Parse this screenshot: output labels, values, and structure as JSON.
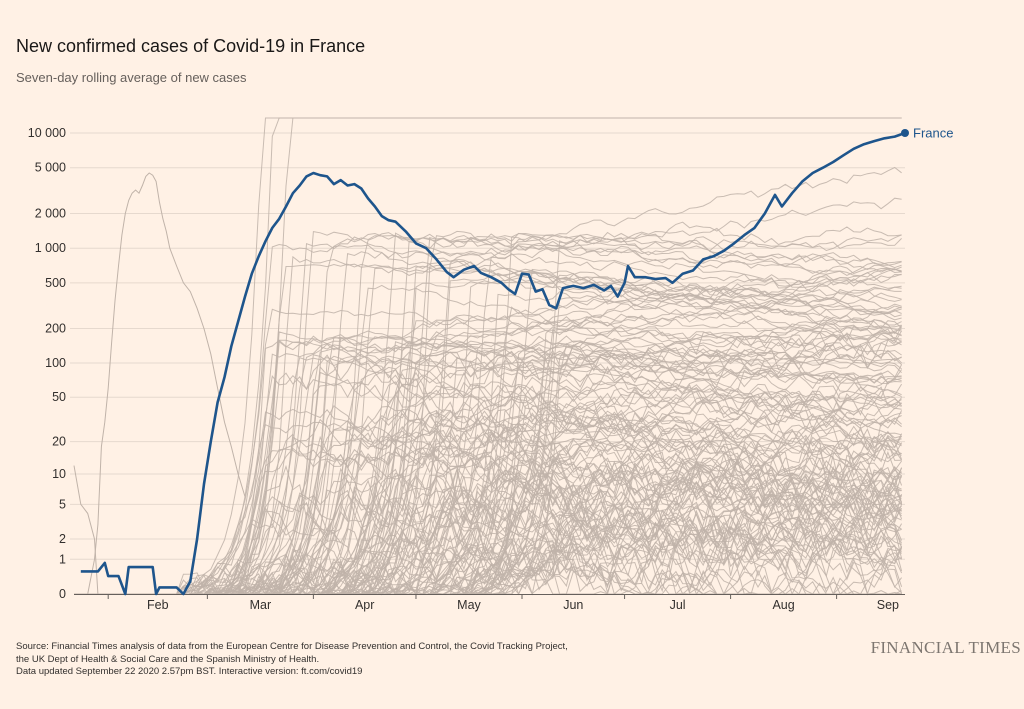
{
  "title": "New confirmed cases of Covid-19 in France",
  "subtitle": "Seven-day rolling average of new cases",
  "footer": {
    "line1": "Source: Financial Times analysis of data from the European Centre for Disease Prevention and Control, the Covid Tracking Project,",
    "line2": "the UK Dept of Health & Social Care and the Spanish Ministry of Health.",
    "line3": "Data updated September 22 2020 2.57pm BST. Interactive version: ft.com/covid19"
  },
  "logo": "FINANCIAL TIMES",
  "colors": {
    "background": "#fff1e5",
    "highlight": "#1e558c",
    "other_countries": "#c0b3a9"
  },
  "chart_data": {
    "type": "line",
    "scale": "log-ish (symlog, 0 shown at bottom)",
    "title": "New confirmed cases of Covid-19 in France",
    "xlabel": "",
    "ylabel": "Seven-day rolling average of new cases",
    "x_ticks": [
      "Feb",
      "Mar",
      "Apr",
      "May",
      "Jun",
      "Jul",
      "Aug",
      "Sep"
    ],
    "y_ticks": [
      {
        "value": 0,
        "label": "0"
      },
      {
        "value": 1,
        "label": "1"
      },
      {
        "value": 2,
        "label": "2"
      },
      {
        "value": 5,
        "label": "5"
      },
      {
        "value": 10,
        "label": "10"
      },
      {
        "value": 20,
        "label": "20"
      },
      {
        "value": 50,
        "label": "50"
      },
      {
        "value": 100,
        "label": "100"
      },
      {
        "value": 200,
        "label": "200"
      },
      {
        "value": 500,
        "label": "500"
      },
      {
        "value": 1000,
        "label": "1 000"
      },
      {
        "value": 2000,
        "label": "2 000"
      },
      {
        "value": 5000,
        "label": "5 000"
      },
      {
        "value": 10000,
        "label": "10 000"
      }
    ],
    "x_range": [
      "2020-01-22",
      "2020-09-21"
    ],
    "y_range": [
      0,
      10000
    ],
    "highlight": {
      "name": "France",
      "label": "France",
      "points": [
        [
          "2020-01-24",
          0.57
        ],
        [
          "2020-01-29",
          0.57
        ],
        [
          "2020-01-31",
          0.86
        ],
        [
          "2020-02-01",
          0.43
        ],
        [
          "2020-02-04",
          0.43
        ],
        [
          "2020-02-06",
          0
        ],
        [
          "2020-02-07",
          0.71
        ],
        [
          "2020-02-14",
          0.71
        ],
        [
          "2020-02-15",
          0
        ],
        [
          "2020-02-16",
          0.14
        ],
        [
          "2020-02-21",
          0.14
        ],
        [
          "2020-02-23",
          0
        ],
        [
          "2020-02-25",
          0.29
        ],
        [
          "2020-02-27",
          2
        ],
        [
          "2020-02-29",
          8
        ],
        [
          "2020-03-02",
          20
        ],
        [
          "2020-03-04",
          45
        ],
        [
          "2020-03-06",
          75
        ],
        [
          "2020-03-08",
          140
        ],
        [
          "2020-03-10",
          230
        ],
        [
          "2020-03-12",
          380
        ],
        [
          "2020-03-14",
          600
        ],
        [
          "2020-03-16",
          850
        ],
        [
          "2020-03-18",
          1150
        ],
        [
          "2020-03-20",
          1500
        ],
        [
          "2020-03-22",
          1800
        ],
        [
          "2020-03-24",
          2300
        ],
        [
          "2020-03-26",
          3000
        ],
        [
          "2020-03-28",
          3500
        ],
        [
          "2020-03-30",
          4200
        ],
        [
          "2020-04-01",
          4500
        ],
        [
          "2020-04-03",
          4300
        ],
        [
          "2020-04-05",
          4200
        ],
        [
          "2020-04-07",
          3600
        ],
        [
          "2020-04-09",
          3900
        ],
        [
          "2020-04-11",
          3500
        ],
        [
          "2020-04-13",
          3600
        ],
        [
          "2020-04-15",
          3300
        ],
        [
          "2020-04-17",
          2700
        ],
        [
          "2020-04-19",
          2300
        ],
        [
          "2020-04-21",
          1900
        ],
        [
          "2020-04-23",
          1750
        ],
        [
          "2020-04-25",
          1700
        ],
        [
          "2020-04-28",
          1400
        ],
        [
          "2020-05-01",
          1100
        ],
        [
          "2020-05-04",
          1000
        ],
        [
          "2020-05-07",
          800
        ],
        [
          "2020-05-10",
          620
        ],
        [
          "2020-05-12",
          560
        ],
        [
          "2020-05-15",
          650
        ],
        [
          "2020-05-18",
          700
        ],
        [
          "2020-05-20",
          610
        ],
        [
          "2020-05-23",
          560
        ],
        [
          "2020-05-26",
          500
        ],
        [
          "2020-05-28",
          440
        ],
        [
          "2020-05-30",
          400
        ],
        [
          "2020-06-01",
          600
        ],
        [
          "2020-06-03",
          590
        ],
        [
          "2020-06-05",
          420
        ],
        [
          "2020-06-07",
          440
        ],
        [
          "2020-06-09",
          320
        ],
        [
          "2020-06-11",
          300
        ],
        [
          "2020-06-13",
          450
        ],
        [
          "2020-06-16",
          470
        ],
        [
          "2020-06-19",
          450
        ],
        [
          "2020-06-22",
          480
        ],
        [
          "2020-06-25",
          430
        ],
        [
          "2020-06-27",
          470
        ],
        [
          "2020-06-29",
          380
        ],
        [
          "2020-07-01",
          500
        ],
        [
          "2020-07-02",
          700
        ],
        [
          "2020-07-04",
          560
        ],
        [
          "2020-07-07",
          560
        ],
        [
          "2020-07-10",
          540
        ],
        [
          "2020-07-13",
          550
        ],
        [
          "2020-07-15",
          500
        ],
        [
          "2020-07-18",
          600
        ],
        [
          "2020-07-21",
          640
        ],
        [
          "2020-07-24",
          800
        ],
        [
          "2020-07-27",
          850
        ],
        [
          "2020-07-30",
          950
        ],
        [
          "2020-08-02",
          1100
        ],
        [
          "2020-08-05",
          1300
        ],
        [
          "2020-08-08",
          1500
        ],
        [
          "2020-08-11",
          2000
        ],
        [
          "2020-08-14",
          2900
        ],
        [
          "2020-08-16",
          2300
        ],
        [
          "2020-08-19",
          3000
        ],
        [
          "2020-08-22",
          3800
        ],
        [
          "2020-08-25",
          4500
        ],
        [
          "2020-08-28",
          5000
        ],
        [
          "2020-08-31",
          5600
        ],
        [
          "2020-09-03",
          6400
        ],
        [
          "2020-09-06",
          7300
        ],
        [
          "2020-09-09",
          8000
        ],
        [
          "2020-09-12",
          8500
        ],
        [
          "2020-09-15",
          9000
        ],
        [
          "2020-09-18",
          9300
        ],
        [
          "2020-09-21",
          10000
        ]
      ]
    },
    "other_countries_note": "Roughly 150 other countries shown as thin grey lines (approximate trajectories)"
  }
}
